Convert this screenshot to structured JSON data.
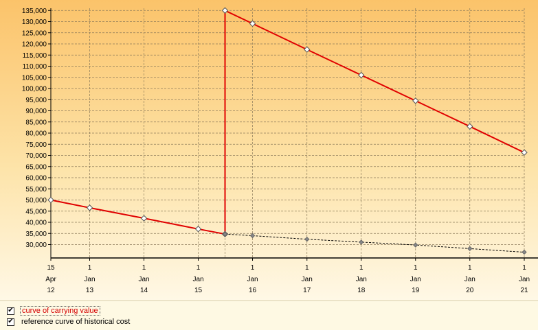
{
  "chart_data": {
    "type": "line",
    "ylim": [
      24000,
      136000
    ],
    "y_ticks": [
      30000,
      35000,
      40000,
      45000,
      50000,
      55000,
      60000,
      65000,
      70000,
      75000,
      80000,
      85000,
      90000,
      95000,
      100000,
      105000,
      110000,
      115000,
      120000,
      125000,
      130000,
      135000
    ],
    "y_tick_labels": [
      "30,000",
      "35,000",
      "40,000",
      "45,000",
      "50,000",
      "55,000",
      "60,000",
      "65,000",
      "70,000",
      "75,000",
      "80,000",
      "85,000",
      "90,000",
      "95,000",
      "100,000",
      "105,000",
      "110,000",
      "115,000",
      "120,000",
      "125,000",
      "130,000",
      "135,000"
    ],
    "x_range": [
      "2012-04-15",
      "2021-01-01"
    ],
    "x_ticks": [
      {
        "date": "2012-04-15",
        "day": "15",
        "month": "Apr",
        "year": "12"
      },
      {
        "date": "2013-01-01",
        "day": "1",
        "month": "Jan",
        "year": "13"
      },
      {
        "date": "2014-01-01",
        "day": "1",
        "month": "Jan",
        "year": "14"
      },
      {
        "date": "2015-01-01",
        "day": "1",
        "month": "Jan",
        "year": "15"
      },
      {
        "date": "2016-01-01",
        "day": "1",
        "month": "Jan",
        "year": "16"
      },
      {
        "date": "2017-01-01",
        "day": "1",
        "month": "Jan",
        "year": "17"
      },
      {
        "date": "2018-01-01",
        "day": "1",
        "month": "Jan",
        "year": "18"
      },
      {
        "date": "2019-01-01",
        "day": "1",
        "month": "Jan",
        "year": "19"
      },
      {
        "date": "2020-01-01",
        "day": "1",
        "month": "Jan",
        "year": "20"
      },
      {
        "date": "2021-01-01",
        "day": "1",
        "month": "Jan",
        "year": "21"
      }
    ],
    "extra_vgrid_dates": [
      "2015-06-30"
    ],
    "grid": true,
    "series": [
      {
        "name": "curve of carrying value",
        "color": "#e00000",
        "style": "solid",
        "marker": "hollow-diamond",
        "points": [
          {
            "x": "2012-04-15",
            "y": 50000
          },
          {
            "x": "2013-01-01",
            "y": 46500
          },
          {
            "x": "2014-01-01",
            "y": 41800
          },
          {
            "x": "2015-01-01",
            "y": 37000
          },
          {
            "x": "2015-06-30",
            "y": 34700
          },
          {
            "x": "2015-06-30",
            "y": 135000
          },
          {
            "x": "2016-01-01",
            "y": 129100
          },
          {
            "x": "2017-01-01",
            "y": 117500
          },
          {
            "x": "2018-01-01",
            "y": 106000
          },
          {
            "x": "2019-01-01",
            "y": 94500
          },
          {
            "x": "2020-01-01",
            "y": 83000
          },
          {
            "x": "2021-01-01",
            "y": 71300
          }
        ]
      },
      {
        "name": "reference curve of historical cost",
        "color": "#000000",
        "style": "dashed",
        "marker": "gray-diamond",
        "points": [
          {
            "x": "2015-06-30",
            "y": 34700
          },
          {
            "x": "2016-01-01",
            "y": 34000
          },
          {
            "x": "2017-01-01",
            "y": 32400
          },
          {
            "x": "2018-01-01",
            "y": 31100
          },
          {
            "x": "2019-01-01",
            "y": 29800
          },
          {
            "x": "2020-01-01",
            "y": 28200
          },
          {
            "x": "2021-01-01",
            "y": 26600
          }
        ]
      }
    ]
  },
  "legend": {
    "items": [
      {
        "label": "curve of carrying value",
        "checked": true,
        "check_glyph": "🗹"
      },
      {
        "label": "reference curve of historical cost",
        "checked": true,
        "check_glyph": "🗹"
      }
    ]
  }
}
